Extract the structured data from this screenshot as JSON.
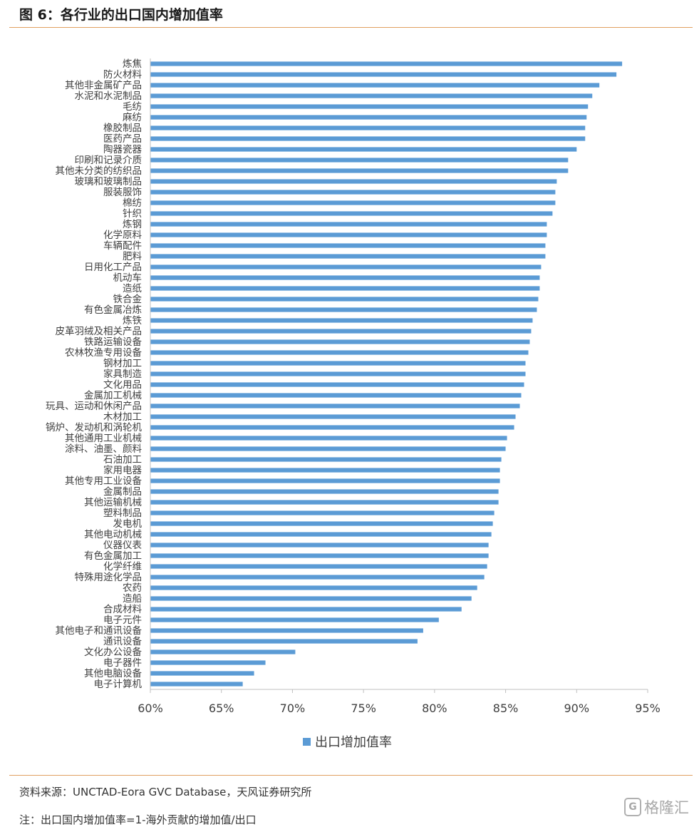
{
  "figure": {
    "title": "图 6：各行业的出口国内增加值率",
    "source": "资料来源：UNCTAD-Eora GVC Database，天风证券研究所",
    "note": "注：出口国内增加值率=1-海外贡献的增加值/出口",
    "watermark": "格隆汇"
  },
  "colors": {
    "bar": "#5b9bd5",
    "axis": "#bfbfbf",
    "rule": "#e0a060"
  },
  "chart_data": {
    "type": "bar",
    "orientation": "horizontal",
    "xlim": [
      0.6,
      0.95
    ],
    "xticks": [
      {
        "value": 0.6,
        "label": "60%"
      },
      {
        "value": 0.65,
        "label": "65%"
      },
      {
        "value": 0.7,
        "label": "70%"
      },
      {
        "value": 0.75,
        "label": "75%"
      },
      {
        "value": 0.8,
        "label": "80%"
      },
      {
        "value": 0.85,
        "label": "85%"
      },
      {
        "value": 0.9,
        "label": "90%"
      },
      {
        "value": 0.95,
        "label": "95%"
      }
    ],
    "legend": {
      "position": "bottom"
    },
    "series": [
      {
        "name": "出口增加值率",
        "categories": [
          "炼焦",
          "防火材料",
          "其他非金属矿产品",
          "水泥和水泥制品",
          "毛纺",
          "麻纺",
          "橡胶制品",
          "医药产品",
          "陶器瓷器",
          "印刷和记录介质",
          "其他未分类的纺织品",
          "玻璃和玻璃制品",
          "服装服饰",
          "棉纺",
          "针织",
          "炼钢",
          "化学原料",
          "车辆配件",
          "肥料",
          "日用化工产品",
          "机动车",
          "造纸",
          "铁合金",
          "有色金属冶炼",
          "炼铁",
          "皮革羽绒及相关产品",
          "铁路运输设备",
          "农林牧渔专用设备",
          "钢材加工",
          "家具制造",
          "文化用品",
          "金属加工机械",
          "玩具、运动和休闲产品",
          "木材加工",
          "锅炉、发动机和涡轮机",
          "其他通用工业机械",
          "涂料、油墨、颜料",
          "石油加工",
          "家用电器",
          "其他专用工业设备",
          "金属制品",
          "其他运输机械",
          "塑料制品",
          "发电机",
          "其他电动机械",
          "仪器仪表",
          "有色金属加工",
          "化学纤维",
          "特殊用途化学品",
          "农药",
          "造船",
          "合成材料",
          "电子元件",
          "其他电子和通讯设备",
          "通讯设备",
          "文化办公设备",
          "电子器件",
          "其他电脑设备",
          "电子计算机"
        ],
        "values": [
          0.932,
          0.928,
          0.916,
          0.911,
          0.908,
          0.907,
          0.906,
          0.906,
          0.9,
          0.894,
          0.894,
          0.886,
          0.885,
          0.885,
          0.883,
          0.879,
          0.879,
          0.878,
          0.878,
          0.875,
          0.874,
          0.874,
          0.873,
          0.872,
          0.869,
          0.868,
          0.867,
          0.866,
          0.864,
          0.864,
          0.863,
          0.861,
          0.86,
          0.857,
          0.856,
          0.851,
          0.85,
          0.847,
          0.846,
          0.846,
          0.845,
          0.845,
          0.842,
          0.841,
          0.84,
          0.838,
          0.838,
          0.837,
          0.835,
          0.83,
          0.826,
          0.819,
          0.803,
          0.792,
          0.788,
          0.702,
          0.681,
          0.673,
          0.665
        ]
      }
    ]
  }
}
